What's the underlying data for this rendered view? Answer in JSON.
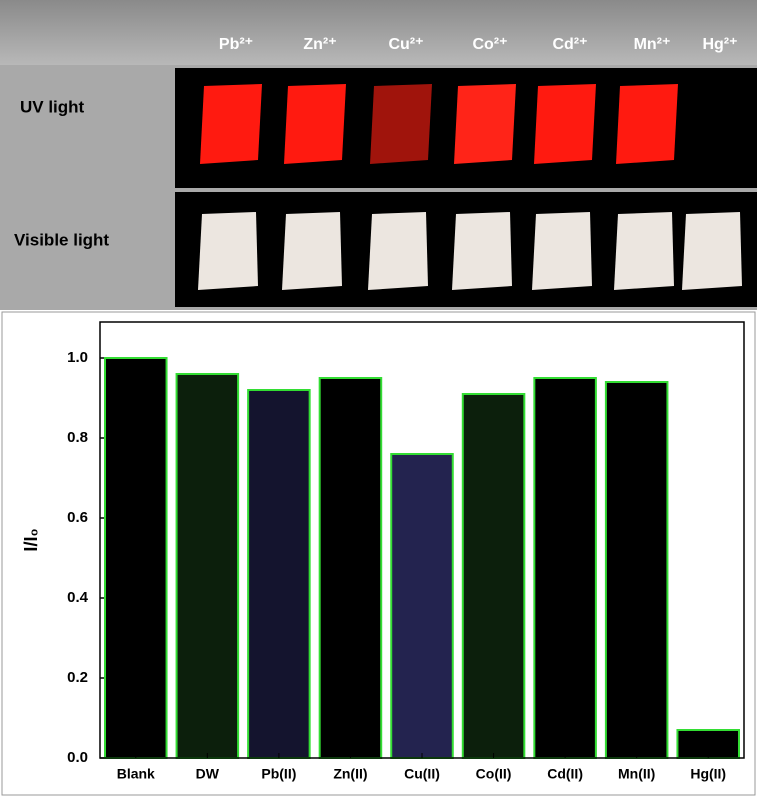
{
  "photo_panel": {
    "ions": [
      "Pb²⁺",
      "Zn²⁺",
      "Cu²⁺",
      "Co²⁺",
      "Cd²⁺",
      "Mn²⁺",
      "Hg²⁺"
    ],
    "rows": [
      "UV light",
      "Visible light"
    ]
  },
  "chart_data": {
    "type": "bar",
    "y_label": "I/I₀",
    "categories": [
      "Blank",
      "DW",
      "Pb(II)",
      "Zn(II)",
      "Cu(II)",
      "Co(II)",
      "Cd(II)",
      "Mn(II)",
      "Hg(II)"
    ],
    "values": [
      1.0,
      0.96,
      0.92,
      0.95,
      0.76,
      0.91,
      0.95,
      0.94,
      0.07
    ],
    "colors": [
      "#000000",
      "#0c1f0c",
      "#14142e",
      "#000000",
      "#23234f",
      "#0c1f0c",
      "#000000",
      "#000000",
      "#000000"
    ],
    "edgecolor": "#33dd33",
    "ylim": [
      0,
      1.09
    ],
    "yticks": [
      {
        "value": 0,
        "label": "0.0"
      },
      0.2,
      0.4,
      0.6,
      0.8,
      {
        "value": 1,
        "label": "1.0"
      }
    ]
  }
}
